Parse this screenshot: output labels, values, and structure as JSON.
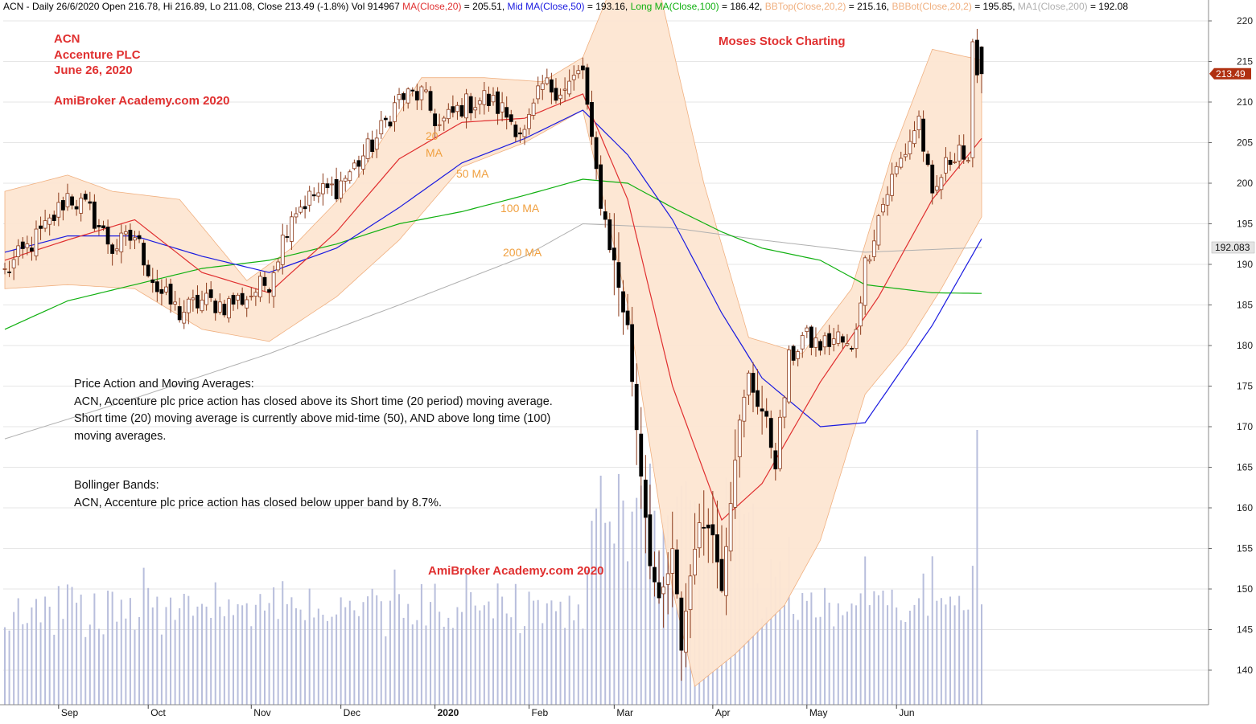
{
  "header": {
    "parts": [
      {
        "text": "ACN - Daily 26/6/2020 Open 216.78, Hi 216.89, Lo 211.08, Close 213.49 (-1.8%) Vol 914967 ",
        "color": "#000000"
      },
      {
        "text": "MA(Close,20)",
        "color": "#e03030"
      },
      {
        "text": " = 205.51, ",
        "color": "#000000"
      },
      {
        "text": "Mid MA(Close,50)",
        "color": "#1a1ae0"
      },
      {
        "text": " = 193.16, ",
        "color": "#000000"
      },
      {
        "text": "Long MA(Close,100)",
        "color": "#10b010"
      },
      {
        "text": " = 186.42, ",
        "color": "#000000"
      },
      {
        "text": "BBTop(Close,20,2)",
        "color": "#f0b080"
      },
      {
        "text": " = 215.16, ",
        "color": "#000000"
      },
      {
        "text": "BBBot(Close,20,2)",
        "color": "#f0b080"
      },
      {
        "text": " = 195.85, ",
        "color": "#000000"
      },
      {
        "text": "MA1(Close,200)",
        "color": "#b0b0b0"
      },
      {
        "text": " = 192.08",
        "color": "#000000"
      }
    ]
  },
  "annotations": {
    "ticker": "ACN",
    "company": "Accenture PLC",
    "date": "June 26, 2020",
    "site_top": "AmiBroker Academy.com  2020",
    "brand": "Moses Stock Charting",
    "site_bottom": "AmiBroker Academy.com  2020"
  },
  "notes": {
    "ma_title": "Price Action and Moving Averages:",
    "ma_line1": "ACN, Accenture plc price action has closed above its Short time (20 period) moving average.",
    "ma_line2": "Short time (20) moving average is currently above mid-time (50), AND above long time (100)",
    "ma_line3": "moving averages.",
    "bb_title": "Bollinger Bands:",
    "bb_line1": "ACN, Accenture plc price action has closed below upper band by 8.7%."
  },
  "ma_labels": {
    "ma20_a": "20",
    "ma20_b": "MA",
    "ma50": "50 MA",
    "ma100": "100 MA",
    "ma200": "200 MA"
  },
  "price_tags": {
    "last_close": "213.49",
    "ma200_value": "192.083"
  },
  "colors": {
    "ma20": "#e03030",
    "ma50": "#1a1ae0",
    "ma100": "#10b010",
    "ma200": "#b0b0b0",
    "band_fill": "#fde6d2",
    "band_edge": "#f0b080",
    "volume": "#b8bedc",
    "up_candle": "#ffffff",
    "down_candle": "#000000",
    "wick": "#8b3a1a",
    "annotation": "#e03030",
    "ma_label": "#f0a040",
    "last_tag": "#b03010"
  },
  "chart_data": {
    "type": "candlestick",
    "symbol": "ACN",
    "ylim": [
      137,
      222
    ],
    "y_ticks": [
      140,
      145,
      150,
      155,
      160,
      165,
      170,
      175,
      180,
      185,
      190,
      195,
      200,
      205,
      210,
      215,
      220
    ],
    "x_labels": [
      "Sep",
      "Oct",
      "Nov",
      "Dec",
      "2020",
      "Feb",
      "Mar",
      "Apr",
      "May",
      "Jun"
    ],
    "grid": true,
    "last_bar": {
      "date": "26/6/2020",
      "open": 216.78,
      "high": 216.89,
      "low": 211.08,
      "close": 213.49,
      "change_pct": -1.8,
      "volume": 914967
    },
    "indicator_values": {
      "ma20": 205.51,
      "ma50": 193.16,
      "ma100": 186.42,
      "bb_top": 215.16,
      "bb_bot": 195.85,
      "ma200": 192.08
    },
    "close_anchors": [
      [
        "2019-08-15",
        189.0
      ],
      [
        "2019-08-22",
        192.0
      ],
      [
        "2019-08-29",
        195.0
      ],
      [
        "2019-09-05",
        198.5
      ],
      [
        "2019-09-12",
        196.5
      ],
      [
        "2019-09-19",
        192.0
      ],
      [
        "2019-09-26",
        193.5
      ],
      [
        "2019-10-03",
        187.0
      ],
      [
        "2019-10-10",
        184.0
      ],
      [
        "2019-10-17",
        185.5
      ],
      [
        "2019-10-24",
        185.0
      ],
      [
        "2019-10-31",
        186.0
      ],
      [
        "2019-11-07",
        188.0
      ],
      [
        "2019-11-14",
        196.5
      ],
      [
        "2019-11-21",
        198.5
      ],
      [
        "2019-11-28",
        199.5
      ],
      [
        "2019-12-05",
        202.0
      ],
      [
        "2019-12-12",
        205.5
      ],
      [
        "2019-12-19",
        210.5
      ],
      [
        "2019-12-27",
        211.0
      ],
      [
        "2020-01-03",
        207.0
      ],
      [
        "2020-01-10",
        209.5
      ],
      [
        "2020-01-17",
        210.5
      ],
      [
        "2020-01-24",
        209.0
      ],
      [
        "2020-01-31",
        206.0
      ],
      [
        "2020-02-06",
        212.0
      ],
      [
        "2020-02-13",
        211.5
      ],
      [
        "2020-02-20",
        214.0
      ],
      [
        "2020-02-24",
        204.5
      ],
      [
        "2020-02-26",
        198.0
      ],
      [
        "2020-03-02",
        190.0
      ],
      [
        "2020-03-05",
        182.0
      ],
      [
        "2020-03-09",
        170.0
      ],
      [
        "2020-03-12",
        154.0
      ],
      [
        "2020-03-16",
        147.5
      ],
      [
        "2020-03-19",
        154.0
      ],
      [
        "2020-03-23",
        143.0
      ],
      [
        "2020-03-26",
        156.0
      ],
      [
        "2020-03-31",
        159.0
      ],
      [
        "2020-04-03",
        151.0
      ],
      [
        "2020-04-08",
        167.0
      ],
      [
        "2020-04-14",
        176.0
      ],
      [
        "2020-04-17",
        172.0
      ],
      [
        "2020-04-22",
        166.0
      ],
      [
        "2020-04-27",
        178.0
      ],
      [
        "2020-04-30",
        181.0
      ],
      [
        "2020-05-06",
        180.0
      ],
      [
        "2020-05-12",
        181.0
      ],
      [
        "2020-05-15",
        179.0
      ],
      [
        "2020-05-20",
        190.0
      ],
      [
        "2020-05-26",
        196.0
      ],
      [
        "2020-05-29",
        200.5
      ],
      [
        "2020-06-03",
        204.0
      ],
      [
        "2020-06-08",
        208.0
      ],
      [
        "2020-06-11",
        197.5
      ],
      [
        "2020-06-15",
        201.0
      ],
      [
        "2020-06-19",
        205.0
      ],
      [
        "2020-06-23",
        201.5
      ],
      [
        "2020-06-24",
        216.0
      ],
      [
        "2020-06-26",
        213.49
      ]
    ],
    "series_anchors": {
      "ma20": [
        [
          "2019-08-15",
          190.5
        ],
        [
          "2019-09-05",
          193.0
        ],
        [
          "2019-09-26",
          195.5
        ],
        [
          "2019-10-17",
          189.0
        ],
        [
          "2019-11-07",
          186.5
        ],
        [
          "2019-11-28",
          194.0
        ],
        [
          "2019-12-19",
          203.0
        ],
        [
          "2020-01-10",
          207.5
        ],
        [
          "2020-01-31",
          208.0
        ],
        [
          "2020-02-20",
          211.0
        ],
        [
          "2020-03-05",
          198.0
        ],
        [
          "2020-03-19",
          175.0
        ],
        [
          "2020-04-03",
          158.5
        ],
        [
          "2020-04-17",
          163.0
        ],
        [
          "2020-05-06",
          175.5
        ],
        [
          "2020-05-26",
          186.0
        ],
        [
          "2020-06-11",
          198.0
        ],
        [
          "2020-06-26",
          205.51
        ]
      ],
      "ma50": [
        [
          "2019-08-15",
          191.5
        ],
        [
          "2019-09-05",
          193.5
        ],
        [
          "2019-09-26",
          193.5
        ],
        [
          "2019-10-17",
          191.0
        ],
        [
          "2019-11-07",
          189.0
        ],
        [
          "2019-11-28",
          192.0
        ],
        [
          "2019-12-19",
          197.0
        ],
        [
          "2020-01-10",
          202.5
        ],
        [
          "2020-01-31",
          205.5
        ],
        [
          "2020-02-20",
          209.0
        ],
        [
          "2020-03-05",
          203.5
        ],
        [
          "2020-03-19",
          195.5
        ],
        [
          "2020-04-03",
          184.0
        ],
        [
          "2020-04-17",
          176.0
        ],
        [
          "2020-05-06",
          170.0
        ],
        [
          "2020-05-20",
          170.5
        ],
        [
          "2020-06-11",
          182.5
        ],
        [
          "2020-06-26",
          193.16
        ]
      ],
      "ma100": [
        [
          "2019-08-15",
          182.0
        ],
        [
          "2019-09-05",
          185.5
        ],
        [
          "2019-09-26",
          187.5
        ],
        [
          "2019-10-17",
          189.5
        ],
        [
          "2019-11-07",
          190.5
        ],
        [
          "2019-11-28",
          192.5
        ],
        [
          "2019-12-19",
          195.0
        ],
        [
          "2020-01-10",
          196.5
        ],
        [
          "2020-01-31",
          198.5
        ],
        [
          "2020-02-20",
          200.5
        ],
        [
          "2020-03-05",
          200.0
        ],
        [
          "2020-03-19",
          197.0
        ],
        [
          "2020-04-03",
          194.0
        ],
        [
          "2020-04-17",
          192.0
        ],
        [
          "2020-05-06",
          190.5
        ],
        [
          "2020-05-20",
          187.5
        ],
        [
          "2020-06-11",
          186.5
        ],
        [
          "2020-06-26",
          186.42
        ]
      ],
      "ma200": [
        [
          "2019-08-15",
          168.5
        ],
        [
          "2019-09-26",
          173.5
        ],
        [
          "2019-11-07",
          179.0
        ],
        [
          "2019-12-19",
          185.0
        ],
        [
          "2020-01-31",
          191.0
        ],
        [
          "2020-02-20",
          195.0
        ],
        [
          "2020-03-19",
          194.5
        ],
        [
          "2020-04-17",
          193.0
        ],
        [
          "2020-05-20",
          191.5
        ],
        [
          "2020-06-26",
          192.08
        ]
      ],
      "bb_top": [
        [
          "2019-08-15",
          199.0
        ],
        [
          "2019-09-05",
          201.0
        ],
        [
          "2019-09-19",
          199.0
        ],
        [
          "2019-10-10",
          198.0
        ],
        [
          "2019-10-31",
          188.0
        ],
        [
          "2019-11-14",
          192.0
        ],
        [
          "2019-12-05",
          200.0
        ],
        [
          "2019-12-27",
          213.0
        ],
        [
          "2020-01-17",
          213.0
        ],
        [
          "2020-02-06",
          212.5
        ],
        [
          "2020-02-20",
          215.5
        ],
        [
          "2020-03-02",
          225.0
        ],
        [
          "2020-03-16",
          224.0
        ],
        [
          "2020-03-30",
          200.0
        ],
        [
          "2020-04-14",
          181.0
        ],
        [
          "2020-04-30",
          179.0
        ],
        [
          "2020-05-15",
          187.0
        ],
        [
          "2020-05-29",
          203.5
        ],
        [
          "2020-06-11",
          216.5
        ],
        [
          "2020-06-26",
          215.16
        ]
      ],
      "bb_bot": [
        [
          "2019-08-15",
          187.0
        ],
        [
          "2019-09-05",
          187.5
        ],
        [
          "2019-09-26",
          187.0
        ],
        [
          "2019-10-17",
          182.0
        ],
        [
          "2019-11-07",
          180.5
        ],
        [
          "2019-11-28",
          186.0
        ],
        [
          "2019-12-19",
          193.0
        ],
        [
          "2020-01-10",
          202.0
        ],
        [
          "2020-01-31",
          205.0
        ],
        [
          "2020-02-20",
          209.0
        ],
        [
          "2020-03-05",
          185.0
        ],
        [
          "2020-03-19",
          150.0
        ],
        [
          "2020-03-26",
          138.0
        ],
        [
          "2020-04-08",
          142.0
        ],
        [
          "2020-04-24",
          148.0
        ],
        [
          "2020-05-06",
          156.0
        ],
        [
          "2020-05-20",
          174.0
        ],
        [
          "2020-06-03",
          180.0
        ],
        [
          "2020-06-15",
          187.0
        ],
        [
          "2020-06-26",
          195.85
        ]
      ]
    }
  }
}
